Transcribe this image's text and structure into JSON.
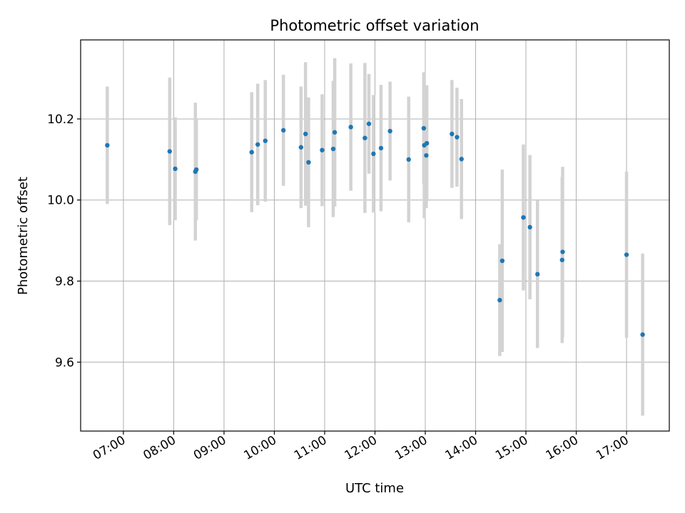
{
  "chart_data": {
    "type": "scatter",
    "title": "Photometric offset variation",
    "xlabel": "UTC time",
    "ylabel": "Photometric offset",
    "x_unit": "hours UTC",
    "xlim": [
      6.15,
      17.85
    ],
    "ylim": [
      9.43,
      10.395
    ],
    "x_ticks": [
      7,
      8,
      9,
      10,
      11,
      12,
      13,
      14,
      15,
      16,
      17
    ],
    "x_tick_labels": [
      "07:00",
      "08:00",
      "09:00",
      "10:00",
      "11:00",
      "12:00",
      "13:00",
      "14:00",
      "15:00",
      "16:00",
      "17:00"
    ],
    "y_ticks": [
      9.6,
      9.8,
      10.0,
      10.2
    ],
    "y_tick_labels": [
      "9.6",
      "9.8",
      "10.0",
      "10.2"
    ],
    "grid": true,
    "legend": "none",
    "colors": {
      "point": "#1f77b4",
      "errorbar": "#d3d3d3",
      "grid": "#b0b0b0"
    },
    "series": [
      {
        "points": [
          {
            "x": 6.68,
            "y": 10.135,
            "err": 0.145
          },
          {
            "x": 7.92,
            "y": 10.12,
            "err": 0.182
          },
          {
            "x": 8.03,
            "y": 10.077,
            "err": 0.127
          },
          {
            "x": 8.43,
            "y": 10.07,
            "err": 0.17
          },
          {
            "x": 8.45,
            "y": 10.075,
            "err": 0.125
          },
          {
            "x": 9.55,
            "y": 10.118,
            "err": 0.148
          },
          {
            "x": 9.67,
            "y": 10.137,
            "err": 0.15
          },
          {
            "x": 9.82,
            "y": 10.146,
            "err": 0.15
          },
          {
            "x": 10.18,
            "y": 10.172,
            "err": 0.137
          },
          {
            "x": 10.53,
            "y": 10.13,
            "err": 0.15
          },
          {
            "x": 10.62,
            "y": 10.163,
            "err": 0.177
          },
          {
            "x": 10.68,
            "y": 10.093,
            "err": 0.16
          },
          {
            "x": 10.95,
            "y": 10.123,
            "err": 0.138
          },
          {
            "x": 11.17,
            "y": 10.126,
            "err": 0.168
          },
          {
            "x": 11.2,
            "y": 10.167,
            "err": 0.183
          },
          {
            "x": 11.52,
            "y": 10.18,
            "err": 0.157
          },
          {
            "x": 11.8,
            "y": 10.153,
            "err": 0.185
          },
          {
            "x": 11.88,
            "y": 10.188,
            "err": 0.123
          },
          {
            "x": 11.97,
            "y": 10.114,
            "err": 0.145
          },
          {
            "x": 12.12,
            "y": 10.128,
            "err": 0.156
          },
          {
            "x": 12.3,
            "y": 10.17,
            "err": 0.122
          },
          {
            "x": 12.67,
            "y": 10.1,
            "err": 0.155
          },
          {
            "x": 12.97,
            "y": 10.177,
            "err": 0.138
          },
          {
            "x": 12.98,
            "y": 10.135,
            "err": 0.18
          },
          {
            "x": 13.02,
            "y": 10.11,
            "err": 0.13
          },
          {
            "x": 13.03,
            "y": 10.14,
            "err": 0.143
          },
          {
            "x": 13.53,
            "y": 10.163,
            "err": 0.133
          },
          {
            "x": 13.63,
            "y": 10.155,
            "err": 0.122
          },
          {
            "x": 13.72,
            "y": 10.101,
            "err": 0.148
          },
          {
            "x": 14.48,
            "y": 9.753,
            "err": 0.138
          },
          {
            "x": 14.53,
            "y": 9.85,
            "err": 0.225
          },
          {
            "x": 14.95,
            "y": 9.957,
            "err": 0.18
          },
          {
            "x": 15.08,
            "y": 9.933,
            "err": 0.178
          },
          {
            "x": 15.23,
            "y": 9.817,
            "err": 0.182
          },
          {
            "x": 15.72,
            "y": 9.852,
            "err": 0.205
          },
          {
            "x": 15.73,
            "y": 9.872,
            "err": 0.21
          },
          {
            "x": 17.0,
            "y": 9.865,
            "err": 0.205
          },
          {
            "x": 17.32,
            "y": 9.668,
            "err": 0.2
          }
        ]
      }
    ]
  }
}
